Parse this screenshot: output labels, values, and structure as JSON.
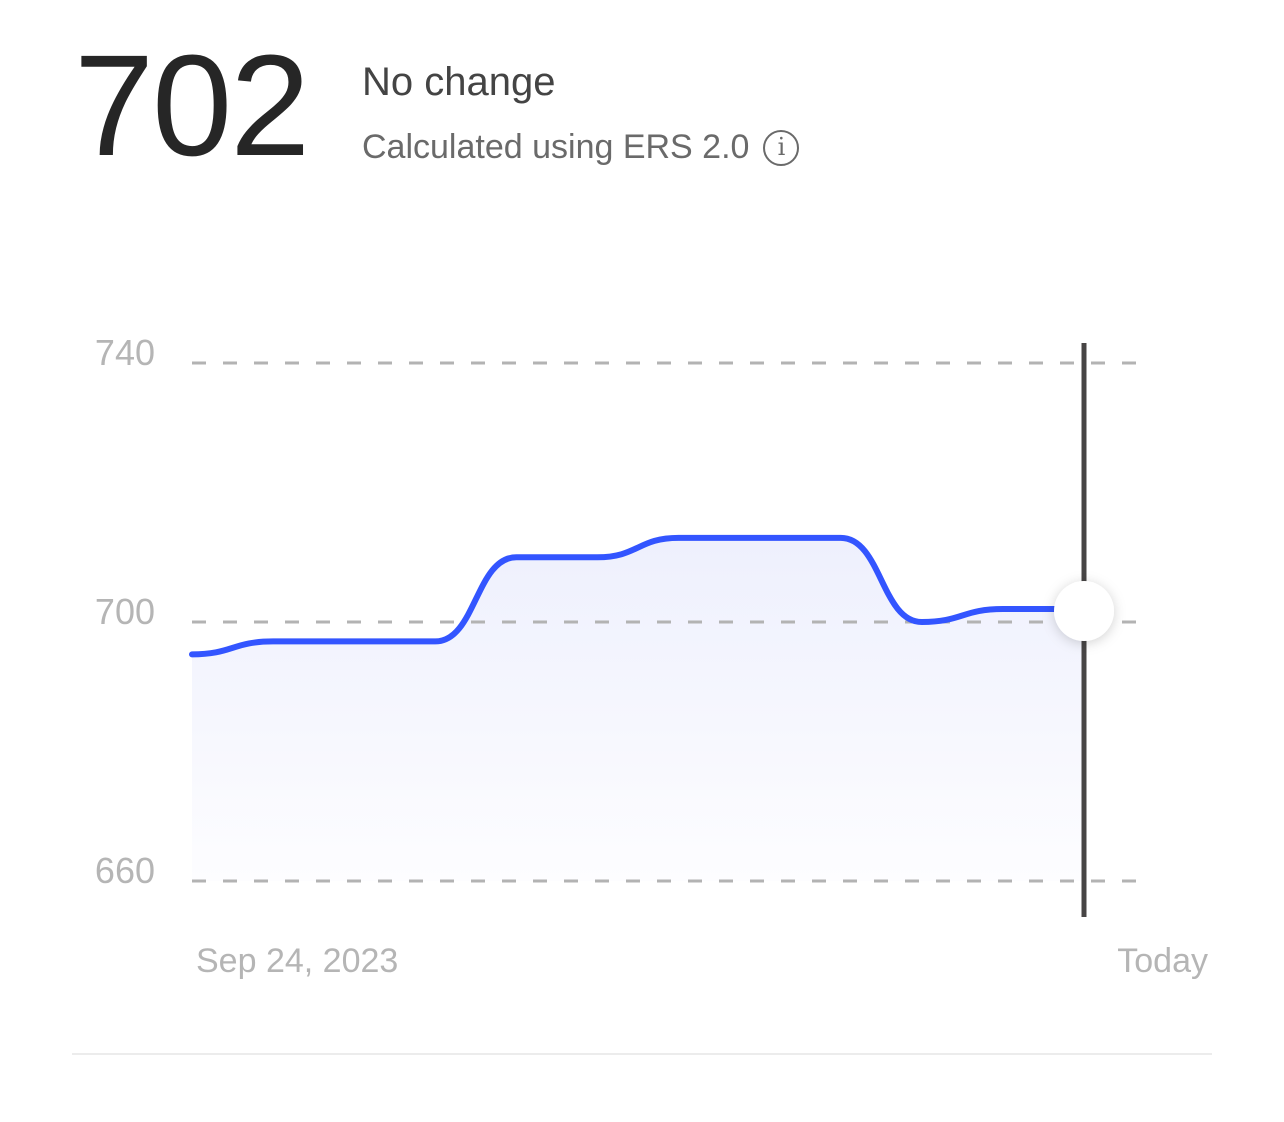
{
  "header": {
    "score": "702",
    "change_label": "No change",
    "calc_label": "Calculated using ERS 2.0",
    "info_icon": "info-circle-icon"
  },
  "colors": {
    "line": "#3355ff",
    "fill": "#eef0fd",
    "grid": "#b3b3b3",
    "cursor": "#474545",
    "tick_text": "#b5b5b5"
  },
  "chart_data": {
    "type": "area",
    "x_labels": [
      "Sep 24, 2023",
      "Today"
    ],
    "values": [
      695,
      697,
      697,
      697,
      710,
      710,
      713,
      713,
      713,
      700,
      702,
      702
    ],
    "yticks": [
      740,
      700,
      660
    ],
    "ylim": [
      660,
      740
    ],
    "grid": true,
    "gridline_style": "dashed",
    "highlighted_point": "last",
    "xlabel": "",
    "ylabel": ""
  }
}
